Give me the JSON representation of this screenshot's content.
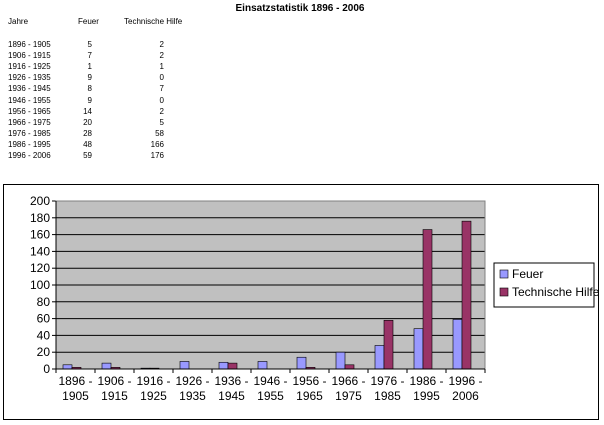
{
  "title": "Einsatzstatistik 1896 - 2006",
  "table": {
    "headers": [
      "Jahre",
      "Feuer",
      "Technische Hilfe"
    ],
    "rows": [
      [
        "1896 - 1905",
        "5",
        "2"
      ],
      [
        "1906 - 1915",
        "7",
        "2"
      ],
      [
        "1916 - 1925",
        "1",
        "1"
      ],
      [
        "1926 - 1935",
        "9",
        "0"
      ],
      [
        "1936 - 1945",
        "8",
        "7"
      ],
      [
        "1946 - 1955",
        "9",
        "0"
      ],
      [
        "1956 - 1965",
        "14",
        "2"
      ],
      [
        "1966 - 1975",
        "20",
        "5"
      ],
      [
        "1976 - 1985",
        "28",
        "58"
      ],
      [
        "1986 - 1995",
        "48",
        "166"
      ],
      [
        "1996 - 2006",
        "59",
        "176"
      ]
    ]
  },
  "chart_data": {
    "type": "bar",
    "categories": [
      [
        "1896 -",
        "1905"
      ],
      [
        "1906 -",
        "1915"
      ],
      [
        "1916 -",
        "1925"
      ],
      [
        "1926 -",
        "1935"
      ],
      [
        "1936 -",
        "1945"
      ],
      [
        "1946 -",
        "1955"
      ],
      [
        "1956 -",
        "1965"
      ],
      [
        "1966 -",
        "1975"
      ],
      [
        "1976 -",
        "1985"
      ],
      [
        "1986 -",
        "1995"
      ],
      [
        "1996 -",
        "2006"
      ]
    ],
    "series": [
      {
        "name": "Feuer",
        "color": "#9999ff",
        "values": [
          5,
          7,
          1,
          9,
          8,
          9,
          14,
          20,
          28,
          48,
          59
        ]
      },
      {
        "name": "Technische Hilfe",
        "color": "#993366",
        "values": [
          2,
          2,
          1,
          0,
          7,
          0,
          2,
          5,
          58,
          166,
          176
        ]
      }
    ],
    "ylim": [
      0,
      200
    ],
    "yticks": [
      0,
      20,
      40,
      60,
      80,
      100,
      120,
      140,
      160,
      180,
      200
    ],
    "plot_background": "#c0c0c0",
    "grid": true,
    "legend": "right"
  }
}
